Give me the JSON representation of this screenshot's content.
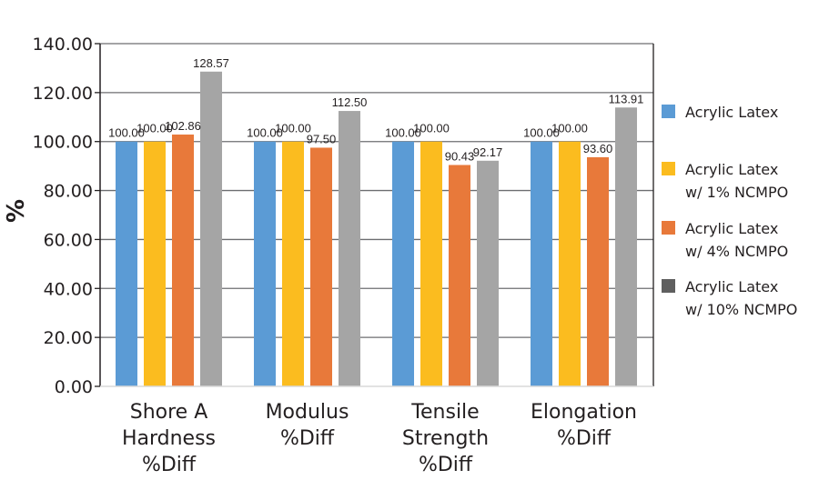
{
  "chart_data": {
    "type": "bar",
    "title": "",
    "xlabel": "",
    "ylabel": "%",
    "ylim": [
      0,
      140
    ],
    "yticks": [
      "0.00",
      "20.00",
      "40.00",
      "60.00",
      "80.00",
      "100.00",
      "120.00",
      "140.00"
    ],
    "grid": true,
    "legend_position": "right",
    "categories": [
      [
        "Shore A",
        "Hardness",
        "%Diff"
      ],
      [
        "Modulus",
        "%Diff"
      ],
      [
        "Tensile",
        "Strength",
        "%Diff"
      ],
      [
        "Elongation",
        "%Diff"
      ]
    ],
    "series": [
      {
        "name": "Acrylic Latex",
        "legend_lines": [
          "Acrylic Latex"
        ],
        "color": "#5b9bd5",
        "legend_color": "#5b9bd5",
        "values": [
          100.0,
          100.0,
          100.0,
          100.0
        ],
        "labels": [
          "100.00",
          "100.00",
          "100.00",
          "100.00"
        ]
      },
      {
        "name": "Acrylic Latex w/ 1% NCMPO",
        "legend_lines": [
          "Acrylic Latex",
          "w/ 1% NCMPO"
        ],
        "color": "#fbbc1f",
        "legend_color": "#fbbc1f",
        "values": [
          100.0,
          100.0,
          100.0,
          100.0
        ],
        "labels": [
          "100.00",
          "100.00",
          "100.00",
          "100.00"
        ]
      },
      {
        "name": "Acrylic Latex w/ 4% NCMPO",
        "legend_lines": [
          "Acrylic Latex",
          "w/ 4% NCMPO"
        ],
        "color": "#e8793a",
        "legend_color": "#e8793a",
        "values": [
          102.86,
          97.5,
          90.43,
          93.6
        ],
        "labels": [
          "102.86",
          "97.50",
          "90.43",
          "93.60"
        ]
      },
      {
        "name": "Acrylic Latex w/ 10% NCMPO",
        "legend_lines": [
          "Acrylic Latex",
          "w/ 10% NCMPO"
        ],
        "color": "#a5a5a5",
        "legend_color": "#5f5f5f",
        "values": [
          128.57,
          112.5,
          92.17,
          113.91
        ],
        "labels": [
          "128.57",
          "112.50",
          "92.17",
          "113.91"
        ]
      }
    ]
  }
}
